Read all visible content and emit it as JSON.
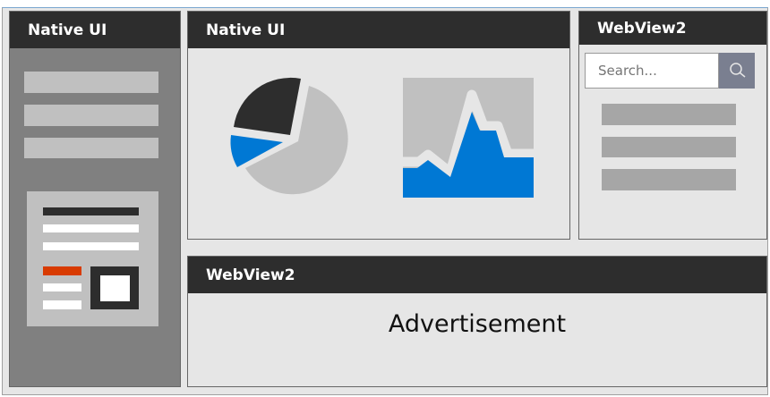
{
  "left_panel": {
    "title": "Native UI"
  },
  "center_panel": {
    "title": "Native UI"
  },
  "right_panel": {
    "title": "WebView2",
    "search": {
      "placeholder": "Search...",
      "icon": "search-icon"
    }
  },
  "bottom_panel": {
    "title": "WebView2",
    "content": "Advertisement"
  },
  "colors": {
    "header": "#2d2d2d",
    "accent_blue": "#0078d4",
    "accent_orange": "#d83b01",
    "sidebar": "#808080"
  }
}
